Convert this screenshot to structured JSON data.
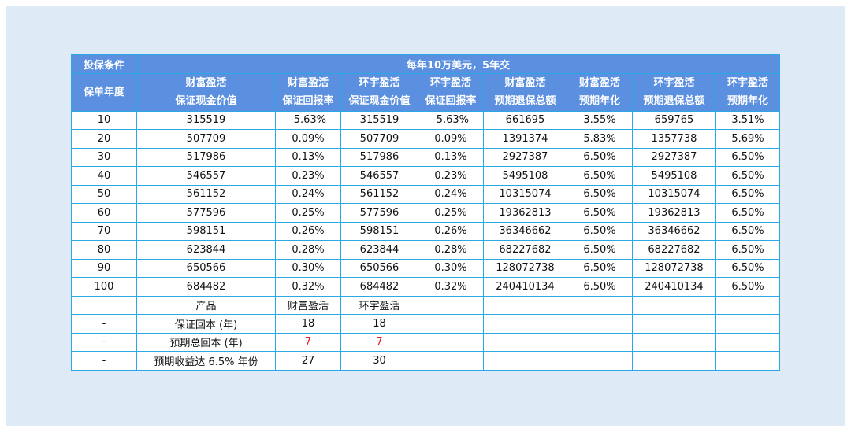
{
  "header": {
    "condition_label": "投保条件",
    "condition_value": "每年10万美元，5年交",
    "year_label": "保单年度",
    "columns": [
      {
        "line1": "财富盈活",
        "line2": "保证现金价值"
      },
      {
        "line1": "财富盈活",
        "line2": "保证回报率"
      },
      {
        "line1": "环宇盈活",
        "line2": "保证现金价值"
      },
      {
        "line1": "环宇盈活",
        "line2": "保证回报率"
      },
      {
        "line1": "财富盈活",
        "line2": "预期退保总额"
      },
      {
        "line1": "财富盈活",
        "line2": "预期年化"
      },
      {
        "line1": "环宇盈活",
        "line2": "预期退保总额"
      },
      {
        "line1": "环宇盈活",
        "line2": "预期年化"
      }
    ]
  },
  "rows": [
    [
      "10",
      "315519",
      "-5.63%",
      "315519",
      "-5.63%",
      "661695",
      "3.55%",
      "659765",
      "3.51%"
    ],
    [
      "20",
      "507709",
      "0.09%",
      "507709",
      "0.09%",
      "1391374",
      "5.83%",
      "1357738",
      "5.69%"
    ],
    [
      "30",
      "517986",
      "0.13%",
      "517986",
      "0.13%",
      "2927387",
      "6.50%",
      "2927387",
      "6.50%"
    ],
    [
      "40",
      "546557",
      "0.23%",
      "546557",
      "0.23%",
      "5495108",
      "6.50%",
      "5495108",
      "6.50%"
    ],
    [
      "50",
      "561152",
      "0.24%",
      "561152",
      "0.24%",
      "10315074",
      "6.50%",
      "10315074",
      "6.50%"
    ],
    [
      "60",
      "577596",
      "0.25%",
      "577596",
      "0.25%",
      "19362813",
      "6.50%",
      "19362813",
      "6.50%"
    ],
    [
      "70",
      "598151",
      "0.26%",
      "598151",
      "0.26%",
      "36346662",
      "6.50%",
      "36346662",
      "6.50%"
    ],
    [
      "80",
      "623844",
      "0.28%",
      "623844",
      "0.28%",
      "68227682",
      "6.50%",
      "68227682",
      "6.50%"
    ],
    [
      "90",
      "650566",
      "0.30%",
      "650566",
      "0.30%",
      "128072738",
      "6.50%",
      "128072738",
      "6.50%"
    ],
    [
      "100",
      "684482",
      "0.32%",
      "684482",
      "0.32%",
      "240410134",
      "6.50%",
      "240410134",
      "6.50%"
    ]
  ],
  "summary": {
    "product_row": {
      "c0": "",
      "label": "产品",
      "a": "财富盈活",
      "b": "环宇盈活"
    },
    "rows": [
      {
        "c0": "-",
        "label": "保证回本 (年)",
        "a": "18",
        "b": "18",
        "highlight": false
      },
      {
        "c0": "-",
        "label": "预期总回本 (年)",
        "a": "7",
        "b": "7",
        "highlight": true
      },
      {
        "c0": "-",
        "label": "预期收益达 6.5% 年份",
        "a": "27",
        "b": "30",
        "highlight": false
      }
    ],
    "highlight_color": "#e02020"
  }
}
